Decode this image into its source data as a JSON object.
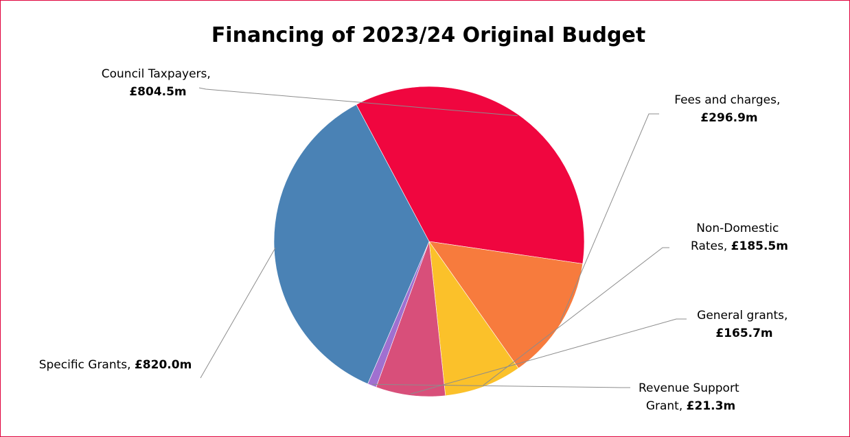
{
  "chart_data": {
    "type": "pie",
    "title": "Financing of 2023/24 Original Budget",
    "unit": "£m",
    "slices": [
      {
        "name": "Council Taxpayers",
        "value": 804.5,
        "label_line1": "Council Taxpayers,",
        "label_value": "£804.5m",
        "color": "#f0063f"
      },
      {
        "name": "Fees and charges",
        "value": 296.9,
        "label_line1": "Fees and charges,",
        "label_value": "£296.9m",
        "color": "#f77b3d"
      },
      {
        "name": "Non-Domestic Rates",
        "value": 185.5,
        "label_line1": "Non-Domestic",
        "label_line2": "Rates,",
        "label_value": "£185.5m",
        "color": "#fbc12a"
      },
      {
        "name": "General grants",
        "value": 165.7,
        "label_line1": "General grants,",
        "label_value": "£165.7m",
        "color": "#d84f7a"
      },
      {
        "name": "Revenue Support Grant",
        "value": 21.3,
        "label_line1": "Revenue Support",
        "label_line2": "Grant,",
        "label_value": "£21.3m",
        "color": "#a070d0"
      },
      {
        "name": "Specific Grants",
        "value": 820.0,
        "label_line1": "Specific Grants,",
        "label_value": "£820.0m",
        "color": "#4a82b5"
      }
    ],
    "border_color": "#e0003c"
  }
}
